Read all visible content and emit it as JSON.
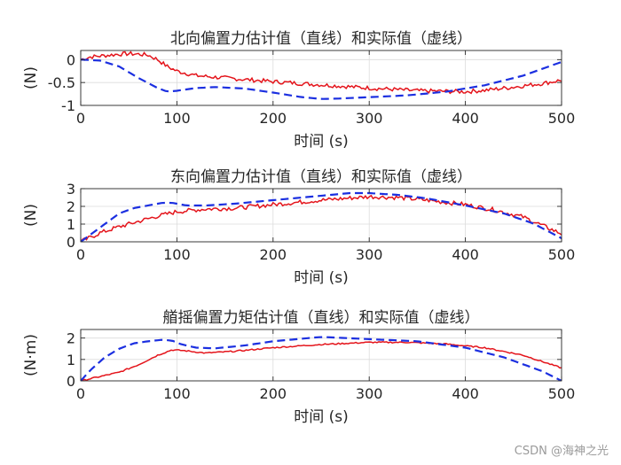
{
  "watermark": "CSDN @海神之光",
  "colors": {
    "estimate": "#e4141b",
    "actual": "#1b2fe0",
    "grid": "#dcdcdc",
    "axis": "#262626"
  },
  "chart_data": [
    {
      "type": "line",
      "title": "北向偏置力估计值（直线）和实际值（虚线）",
      "xlabel": "时间 (s)",
      "ylabel": "(N)",
      "xlim": [
        0,
        500
      ],
      "ylim": [
        -1,
        0.2
      ],
      "xticks": [
        0,
        100,
        200,
        300,
        400,
        500
      ],
      "yticks": [
        0,
        -0.5,
        -1
      ],
      "ytick_labels": [
        "0",
        "-0.5",
        "-1"
      ],
      "grid": true,
      "series": [
        {
          "name": "估计值",
          "style": "solid",
          "noise": 0.045,
          "x": [
            0,
            10,
            20,
            30,
            40,
            50,
            60,
            70,
            80,
            90,
            100,
            120,
            150,
            200,
            250,
            300,
            350,
            400,
            420,
            450,
            480,
            500
          ],
          "y": [
            0.0,
            0.06,
            0.08,
            0.1,
            0.12,
            0.13,
            0.12,
            0.1,
            0.0,
            -0.15,
            -0.25,
            -0.35,
            -0.4,
            -0.48,
            -0.55,
            -0.62,
            -0.68,
            -0.7,
            -0.67,
            -0.6,
            -0.52,
            -0.45
          ]
        },
        {
          "name": "实际值",
          "style": "dashed",
          "noise": 0,
          "x": [
            0,
            20,
            40,
            60,
            80,
            90,
            100,
            120,
            140,
            170,
            200,
            230,
            250,
            270,
            300,
            340,
            380,
            420,
            460,
            500
          ],
          "y": [
            0.0,
            -0.02,
            -0.15,
            -0.4,
            -0.62,
            -0.7,
            -0.68,
            -0.62,
            -0.6,
            -0.63,
            -0.72,
            -0.82,
            -0.86,
            -0.85,
            -0.82,
            -0.78,
            -0.7,
            -0.56,
            -0.35,
            -0.05
          ]
        }
      ]
    },
    {
      "type": "line",
      "title": "东向偏置力估计值（直线）和实际值（虚线）",
      "xlabel": "时间 (s)",
      "ylabel": "(N)",
      "xlim": [
        0,
        500
      ],
      "ylim": [
        0,
        3
      ],
      "xticks": [
        0,
        100,
        200,
        300,
        400,
        500
      ],
      "yticks": [
        0,
        1,
        2,
        3
      ],
      "ytick_labels": [
        "0",
        "1",
        "2",
        "3"
      ],
      "grid": true,
      "series": [
        {
          "name": "估计值",
          "style": "solid",
          "noise": 0.12,
          "x": [
            0,
            20,
            40,
            60,
            80,
            100,
            130,
            160,
            200,
            250,
            300,
            330,
            360,
            400,
            430,
            460,
            500
          ],
          "y": [
            0.0,
            0.5,
            0.85,
            1.15,
            1.45,
            1.7,
            1.85,
            1.9,
            2.1,
            2.35,
            2.55,
            2.5,
            2.35,
            2.1,
            1.8,
            1.4,
            0.45
          ]
        },
        {
          "name": "实际值",
          "style": "dashed",
          "noise": 0,
          "x": [
            0,
            10,
            25,
            40,
            55,
            70,
            85,
            95,
            110,
            130,
            160,
            200,
            250,
            280,
            300,
            330,
            360,
            400,
            440,
            470,
            500
          ],
          "y": [
            0.0,
            0.4,
            1.0,
            1.6,
            1.9,
            2.05,
            2.2,
            2.2,
            2.05,
            2.05,
            2.15,
            2.35,
            2.6,
            2.75,
            2.75,
            2.65,
            2.45,
            2.05,
            1.6,
            1.05,
            0.2
          ]
        }
      ]
    },
    {
      "type": "line",
      "title": "艏摇偏置力矩估计值（直线）和实际值（虚线）",
      "xlabel": "时间 (s)",
      "ylabel": "(N·m)",
      "xlim": [
        0,
        500
      ],
      "ylim": [
        0,
        2.4
      ],
      "xticks": [
        0,
        100,
        200,
        300,
        400,
        500
      ],
      "yticks": [
        0,
        1,
        2
      ],
      "ytick_labels": [
        "0",
        "1",
        "2"
      ],
      "grid": true,
      "series": [
        {
          "name": "估计值",
          "style": "solid",
          "noise": 0.03,
          "x": [
            0,
            20,
            40,
            60,
            80,
            95,
            110,
            130,
            160,
            200,
            250,
            300,
            340,
            380,
            420,
            460,
            500
          ],
          "y": [
            0.0,
            0.2,
            0.4,
            0.75,
            1.2,
            1.45,
            1.4,
            1.3,
            1.38,
            1.55,
            1.7,
            1.8,
            1.8,
            1.72,
            1.55,
            1.2,
            0.6
          ]
        },
        {
          "name": "实际值",
          "style": "dashed",
          "noise": 0,
          "x": [
            0,
            10,
            25,
            40,
            55,
            70,
            85,
            95,
            105,
            120,
            140,
            170,
            200,
            250,
            300,
            350,
            400,
            440,
            480,
            500
          ],
          "y": [
            0.0,
            0.5,
            1.1,
            1.5,
            1.75,
            1.85,
            1.92,
            1.88,
            1.7,
            1.55,
            1.52,
            1.65,
            1.85,
            2.05,
            1.95,
            1.85,
            1.55,
            1.1,
            0.45,
            0.0
          ]
        }
      ]
    }
  ]
}
